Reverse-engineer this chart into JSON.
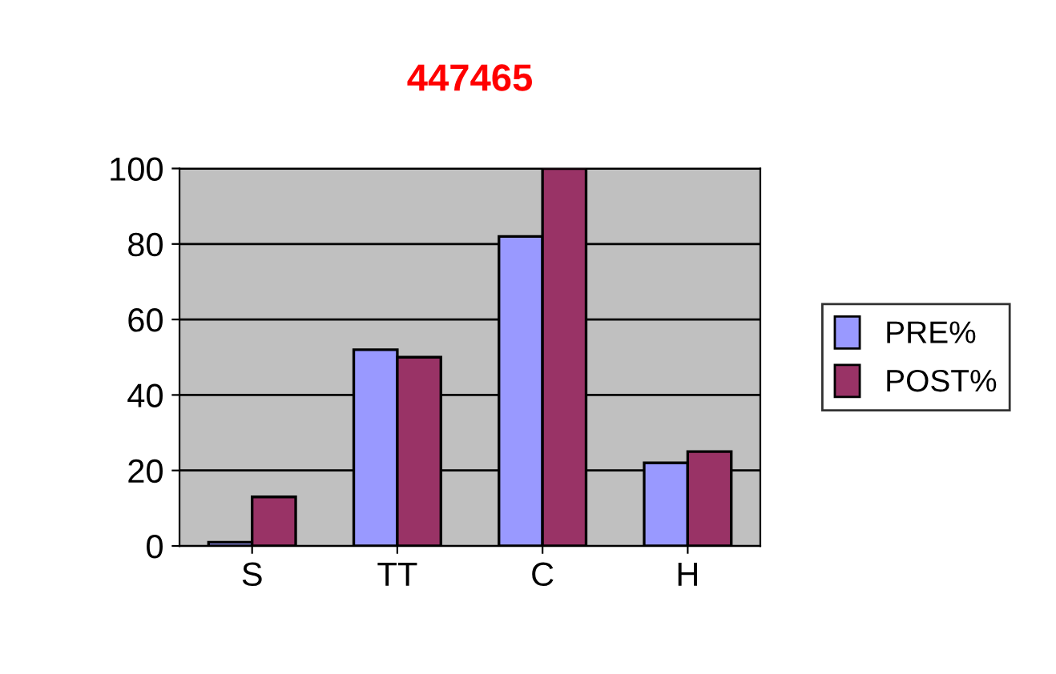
{
  "chart_data": {
    "type": "bar",
    "title": "447465",
    "categories": [
      "S",
      "TT",
      "C",
      "H"
    ],
    "series": [
      {
        "name": "PRE%",
        "color": "#9999ff",
        "values": [
          1,
          52,
          82,
          22
        ]
      },
      {
        "name": "POST%",
        "color": "#993366",
        "values": [
          13,
          50,
          100,
          25
        ]
      }
    ],
    "ylim": [
      0,
      100
    ],
    "yticks": [
      0,
      20,
      40,
      60,
      80,
      100
    ],
    "grid": "y",
    "legend": "right"
  }
}
